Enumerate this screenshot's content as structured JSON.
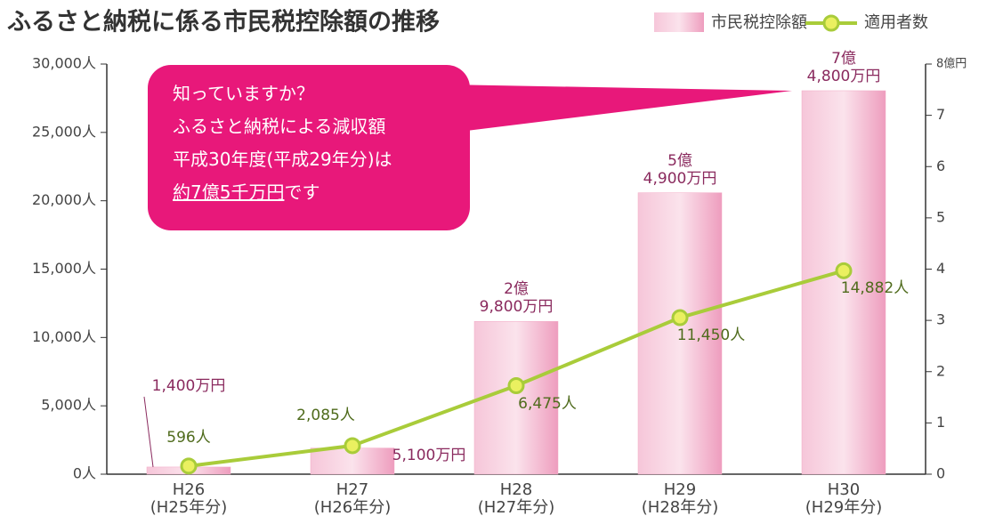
{
  "chart_data": {
    "type": "bar_line",
    "title": "ふるさと納税に係る市民税控除額の推移",
    "categories": [
      "H26\n(H25年分)",
      "H27\n(H26年分)",
      "H28\n(H27年分)",
      "H29\n(H28年分)",
      "H30\n(H29年分)"
    ],
    "series": [
      {
        "name": "市民税控除額",
        "type": "bar",
        "axis": "y2",
        "color": "#f2a9c6",
        "values": [
          0.14,
          0.51,
          2.98,
          5.49,
          7.48
        ],
        "value_labels": [
          "1,400万円",
          "5,100万円",
          "2億\n9,800万円",
          "5億\n4,900万円",
          "7億\n4,800万円"
        ]
      },
      {
        "name": "適用者数",
        "type": "line",
        "axis": "y",
        "color": "#a9cc3a",
        "values": [
          596,
          2085,
          6475,
          11450,
          14882
        ],
        "value_labels": [
          "596人",
          "2,085人",
          "6,475人",
          "11,450人",
          "14,882人"
        ]
      }
    ],
    "ylim": [
      0,
      30000
    ],
    "yticks": [
      {
        "value": 0,
        "label": "0人"
      },
      {
        "value": 5000,
        "label": "5,000人"
      },
      {
        "value": 10000,
        "label": "10,000人"
      },
      {
        "value": 15000,
        "label": "15,000人"
      },
      {
        "value": 20000,
        "label": "20,000人"
      },
      {
        "value": 25000,
        "label": "25,000人"
      },
      {
        "value": 30000,
        "label": "30,000人"
      }
    ],
    "y2lim": [
      0,
      8
    ],
    "y2ticks": [
      0,
      1,
      2,
      3,
      4,
      5,
      6,
      7,
      {
        "value": 8,
        "label": "8億円"
      }
    ],
    "annotation": {
      "lines": [
        "知っていますか？",
        "ふるさと納税による減収額",
        "平成30年度(平成29年分)は"
      ],
      "emphasis": "約7億5千万円",
      "tail": "です"
    }
  }
}
